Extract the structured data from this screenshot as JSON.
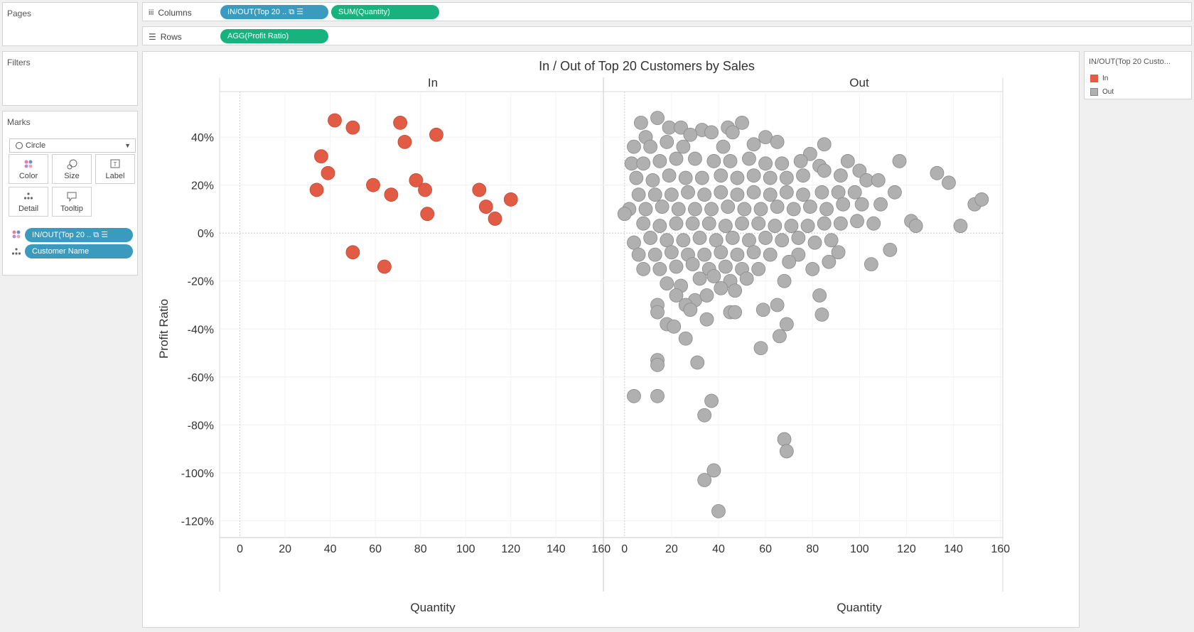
{
  "left_panel": {
    "pages_title": "Pages",
    "filters_title": "Filters",
    "marks_title": "Marks",
    "mark_type": "Circle",
    "mark_buttons": [
      {
        "label": "Color",
        "icon": "color-dots-icon"
      },
      {
        "label": "Size",
        "icon": "size-icon"
      },
      {
        "label": "Label",
        "icon": "label-icon"
      },
      {
        "label": "Detail",
        "icon": "detail-icon"
      },
      {
        "label": "Tooltip",
        "icon": "tooltip-icon"
      }
    ],
    "mark_pills": [
      {
        "label": "IN/OUT(Top 20 .. ⧉ ☰",
        "icon": "color-dots-icon"
      },
      {
        "label": "Customer Name",
        "icon": "detail-icon"
      }
    ]
  },
  "shelves": {
    "columns_label": "Columns",
    "rows_label": "Rows",
    "columns_pills": [
      "IN/OUT(Top 20 .. ⧉ ☰",
      "SUM(Quantity)"
    ],
    "rows_pills": [
      "AGG(Profit Ratio)"
    ]
  },
  "legend": {
    "title": "IN/OUT(Top 20 Custo...",
    "items": [
      {
        "label": "In",
        "color": "#e15b45"
      },
      {
        "label": "Out",
        "color": "#b0b0b0"
      }
    ]
  },
  "chart_data": {
    "type": "scatter",
    "title": "In / Out of Top 20 Customers by Sales",
    "xlabel": "Quantity",
    "ylabel": "Profit Ratio",
    "xlim": [
      -9,
      161
    ],
    "ylim": [
      -127,
      59
    ],
    "x_ticks": [
      "0",
      "20",
      "40",
      "60",
      "80",
      "100",
      "120",
      "140",
      "160"
    ],
    "y_ticks": [
      "40%",
      "20%",
      "0%",
      "-20%",
      "-40%",
      "-60%",
      "-80%",
      "-100%",
      "-120%"
    ],
    "y_tick_values": [
      40,
      20,
      0,
      -20,
      -40,
      -60,
      -80,
      -100,
      -120
    ],
    "panes": [
      {
        "name": "In",
        "color": "#e15b45",
        "points": [
          [
            42,
            47
          ],
          [
            50,
            44
          ],
          [
            71,
            46
          ],
          [
            73,
            38
          ],
          [
            87,
            41
          ],
          [
            36,
            32
          ],
          [
            39,
            25
          ],
          [
            34,
            18
          ],
          [
            59,
            20
          ],
          [
            67,
            16
          ],
          [
            78,
            22
          ],
          [
            82,
            18
          ],
          [
            83,
            8
          ],
          [
            106,
            18
          ],
          [
            109,
            11
          ],
          [
            113,
            6
          ],
          [
            120,
            14
          ],
          [
            50,
            -8
          ],
          [
            64,
            -14
          ]
        ]
      },
      {
        "name": "Out",
        "color": "#b0b0b0",
        "points": [
          [
            7,
            46
          ],
          [
            14,
            48
          ],
          [
            19,
            44
          ],
          [
            24,
            44
          ],
          [
            33,
            43
          ],
          [
            44,
            44
          ],
          [
            50,
            46
          ],
          [
            9,
            40
          ],
          [
            18,
            38
          ],
          [
            28,
            41
          ],
          [
            37,
            42
          ],
          [
            46,
            42
          ],
          [
            60,
            40
          ],
          [
            4,
            36
          ],
          [
            11,
            36
          ],
          [
            25,
            36
          ],
          [
            42,
            36
          ],
          [
            55,
            37
          ],
          [
            65,
            38
          ],
          [
            79,
            33
          ],
          [
            85,
            37
          ],
          [
            3,
            29
          ],
          [
            8,
            29
          ],
          [
            15,
            30
          ],
          [
            22,
            31
          ],
          [
            30,
            31
          ],
          [
            38,
            30
          ],
          [
            45,
            30
          ],
          [
            53,
            31
          ],
          [
            60,
            29
          ],
          [
            67,
            29
          ],
          [
            75,
            30
          ],
          [
            83,
            28
          ],
          [
            95,
            30
          ],
          [
            5,
            23
          ],
          [
            12,
            22
          ],
          [
            19,
            24
          ],
          [
            26,
            23
          ],
          [
            33,
            23
          ],
          [
            41,
            24
          ],
          [
            48,
            23
          ],
          [
            55,
            24
          ],
          [
            62,
            23
          ],
          [
            69,
            23
          ],
          [
            76,
            24
          ],
          [
            85,
            26
          ],
          [
            92,
            24
          ],
          [
            100,
            26
          ],
          [
            103,
            22
          ],
          [
            108,
            22
          ],
          [
            6,
            16
          ],
          [
            13,
            16
          ],
          [
            20,
            16
          ],
          [
            27,
            17
          ],
          [
            34,
            16
          ],
          [
            41,
            17
          ],
          [
            48,
            16
          ],
          [
            55,
            17
          ],
          [
            62,
            16
          ],
          [
            69,
            17
          ],
          [
            76,
            16
          ],
          [
            84,
            17
          ],
          [
            91,
            17
          ],
          [
            98,
            17
          ],
          [
            115,
            17
          ],
          [
            2,
            10
          ],
          [
            9,
            10
          ],
          [
            16,
            11
          ],
          [
            23,
            10
          ],
          [
            30,
            10
          ],
          [
            37,
            10
          ],
          [
            44,
            11
          ],
          [
            51,
            10
          ],
          [
            58,
            10
          ],
          [
            65,
            11
          ],
          [
            72,
            10
          ],
          [
            79,
            11
          ],
          [
            86,
            10
          ],
          [
            93,
            12
          ],
          [
            101,
            12
          ],
          [
            109,
            12
          ],
          [
            0,
            8
          ],
          [
            8,
            4
          ],
          [
            15,
            3
          ],
          [
            22,
            4
          ],
          [
            29,
            4
          ],
          [
            36,
            4
          ],
          [
            43,
            3
          ],
          [
            50,
            4
          ],
          [
            57,
            4
          ],
          [
            64,
            3
          ],
          [
            71,
            3
          ],
          [
            78,
            3
          ],
          [
            85,
            4
          ],
          [
            92,
            4
          ],
          [
            99,
            5
          ],
          [
            106,
            4
          ],
          [
            122,
            5
          ],
          [
            124,
            3
          ],
          [
            143,
            3
          ],
          [
            149,
            12
          ],
          [
            152,
            14
          ],
          [
            138,
            21
          ],
          [
            133,
            25
          ],
          [
            117,
            30
          ],
          [
            4,
            -4
          ],
          [
            11,
            -2
          ],
          [
            18,
            -3
          ],
          [
            25,
            -3
          ],
          [
            32,
            -2
          ],
          [
            39,
            -3
          ],
          [
            46,
            -2
          ],
          [
            53,
            -3
          ],
          [
            60,
            -2
          ],
          [
            67,
            -3
          ],
          [
            74,
            -2
          ],
          [
            81,
            -4
          ],
          [
            88,
            -3
          ],
          [
            6,
            -9
          ],
          [
            13,
            -9
          ],
          [
            20,
            -8
          ],
          [
            27,
            -9
          ],
          [
            34,
            -9
          ],
          [
            41,
            -8
          ],
          [
            48,
            -9
          ],
          [
            55,
            -8
          ],
          [
            62,
            -9
          ],
          [
            74,
            -9
          ],
          [
            91,
            -8
          ],
          [
            8,
            -15
          ],
          [
            15,
            -15
          ],
          [
            22,
            -14
          ],
          [
            29,
            -13
          ],
          [
            36,
            -15
          ],
          [
            43,
            -14
          ],
          [
            50,
            -15
          ],
          [
            57,
            -15
          ],
          [
            70,
            -12
          ],
          [
            80,
            -15
          ],
          [
            87,
            -12
          ],
          [
            105,
            -13
          ],
          [
            113,
            -7
          ],
          [
            18,
            -21
          ],
          [
            24,
            -22
          ],
          [
            32,
            -19
          ],
          [
            38,
            -18
          ],
          [
            45,
            -20
          ],
          [
            52,
            -19
          ],
          [
            68,
            -20
          ],
          [
            22,
            -26
          ],
          [
            30,
            -28
          ],
          [
            41,
            -23
          ],
          [
            47,
            -24
          ],
          [
            14,
            -30
          ],
          [
            26,
            -30
          ],
          [
            35,
            -26
          ],
          [
            18,
            -38
          ],
          [
            14,
            -33
          ],
          [
            28,
            -32
          ],
          [
            45,
            -33
          ],
          [
            47,
            -33
          ],
          [
            59,
            -32
          ],
          [
            65,
            -30
          ],
          [
            83,
            -26
          ],
          [
            21,
            -39
          ],
          [
            35,
            -36
          ],
          [
            26,
            -44
          ],
          [
            58,
            -48
          ],
          [
            66,
            -43
          ],
          [
            69,
            -38
          ],
          [
            84,
            -34
          ],
          [
            14,
            -53
          ],
          [
            14,
            -55
          ],
          [
            31,
            -54
          ],
          [
            4,
            -68
          ],
          [
            14,
            -68
          ],
          [
            37,
            -70
          ],
          [
            34,
            -76
          ],
          [
            68,
            -86
          ],
          [
            69,
            -91
          ],
          [
            38,
            -99
          ],
          [
            34,
            -103
          ],
          [
            40,
            -116
          ]
        ]
      }
    ]
  }
}
